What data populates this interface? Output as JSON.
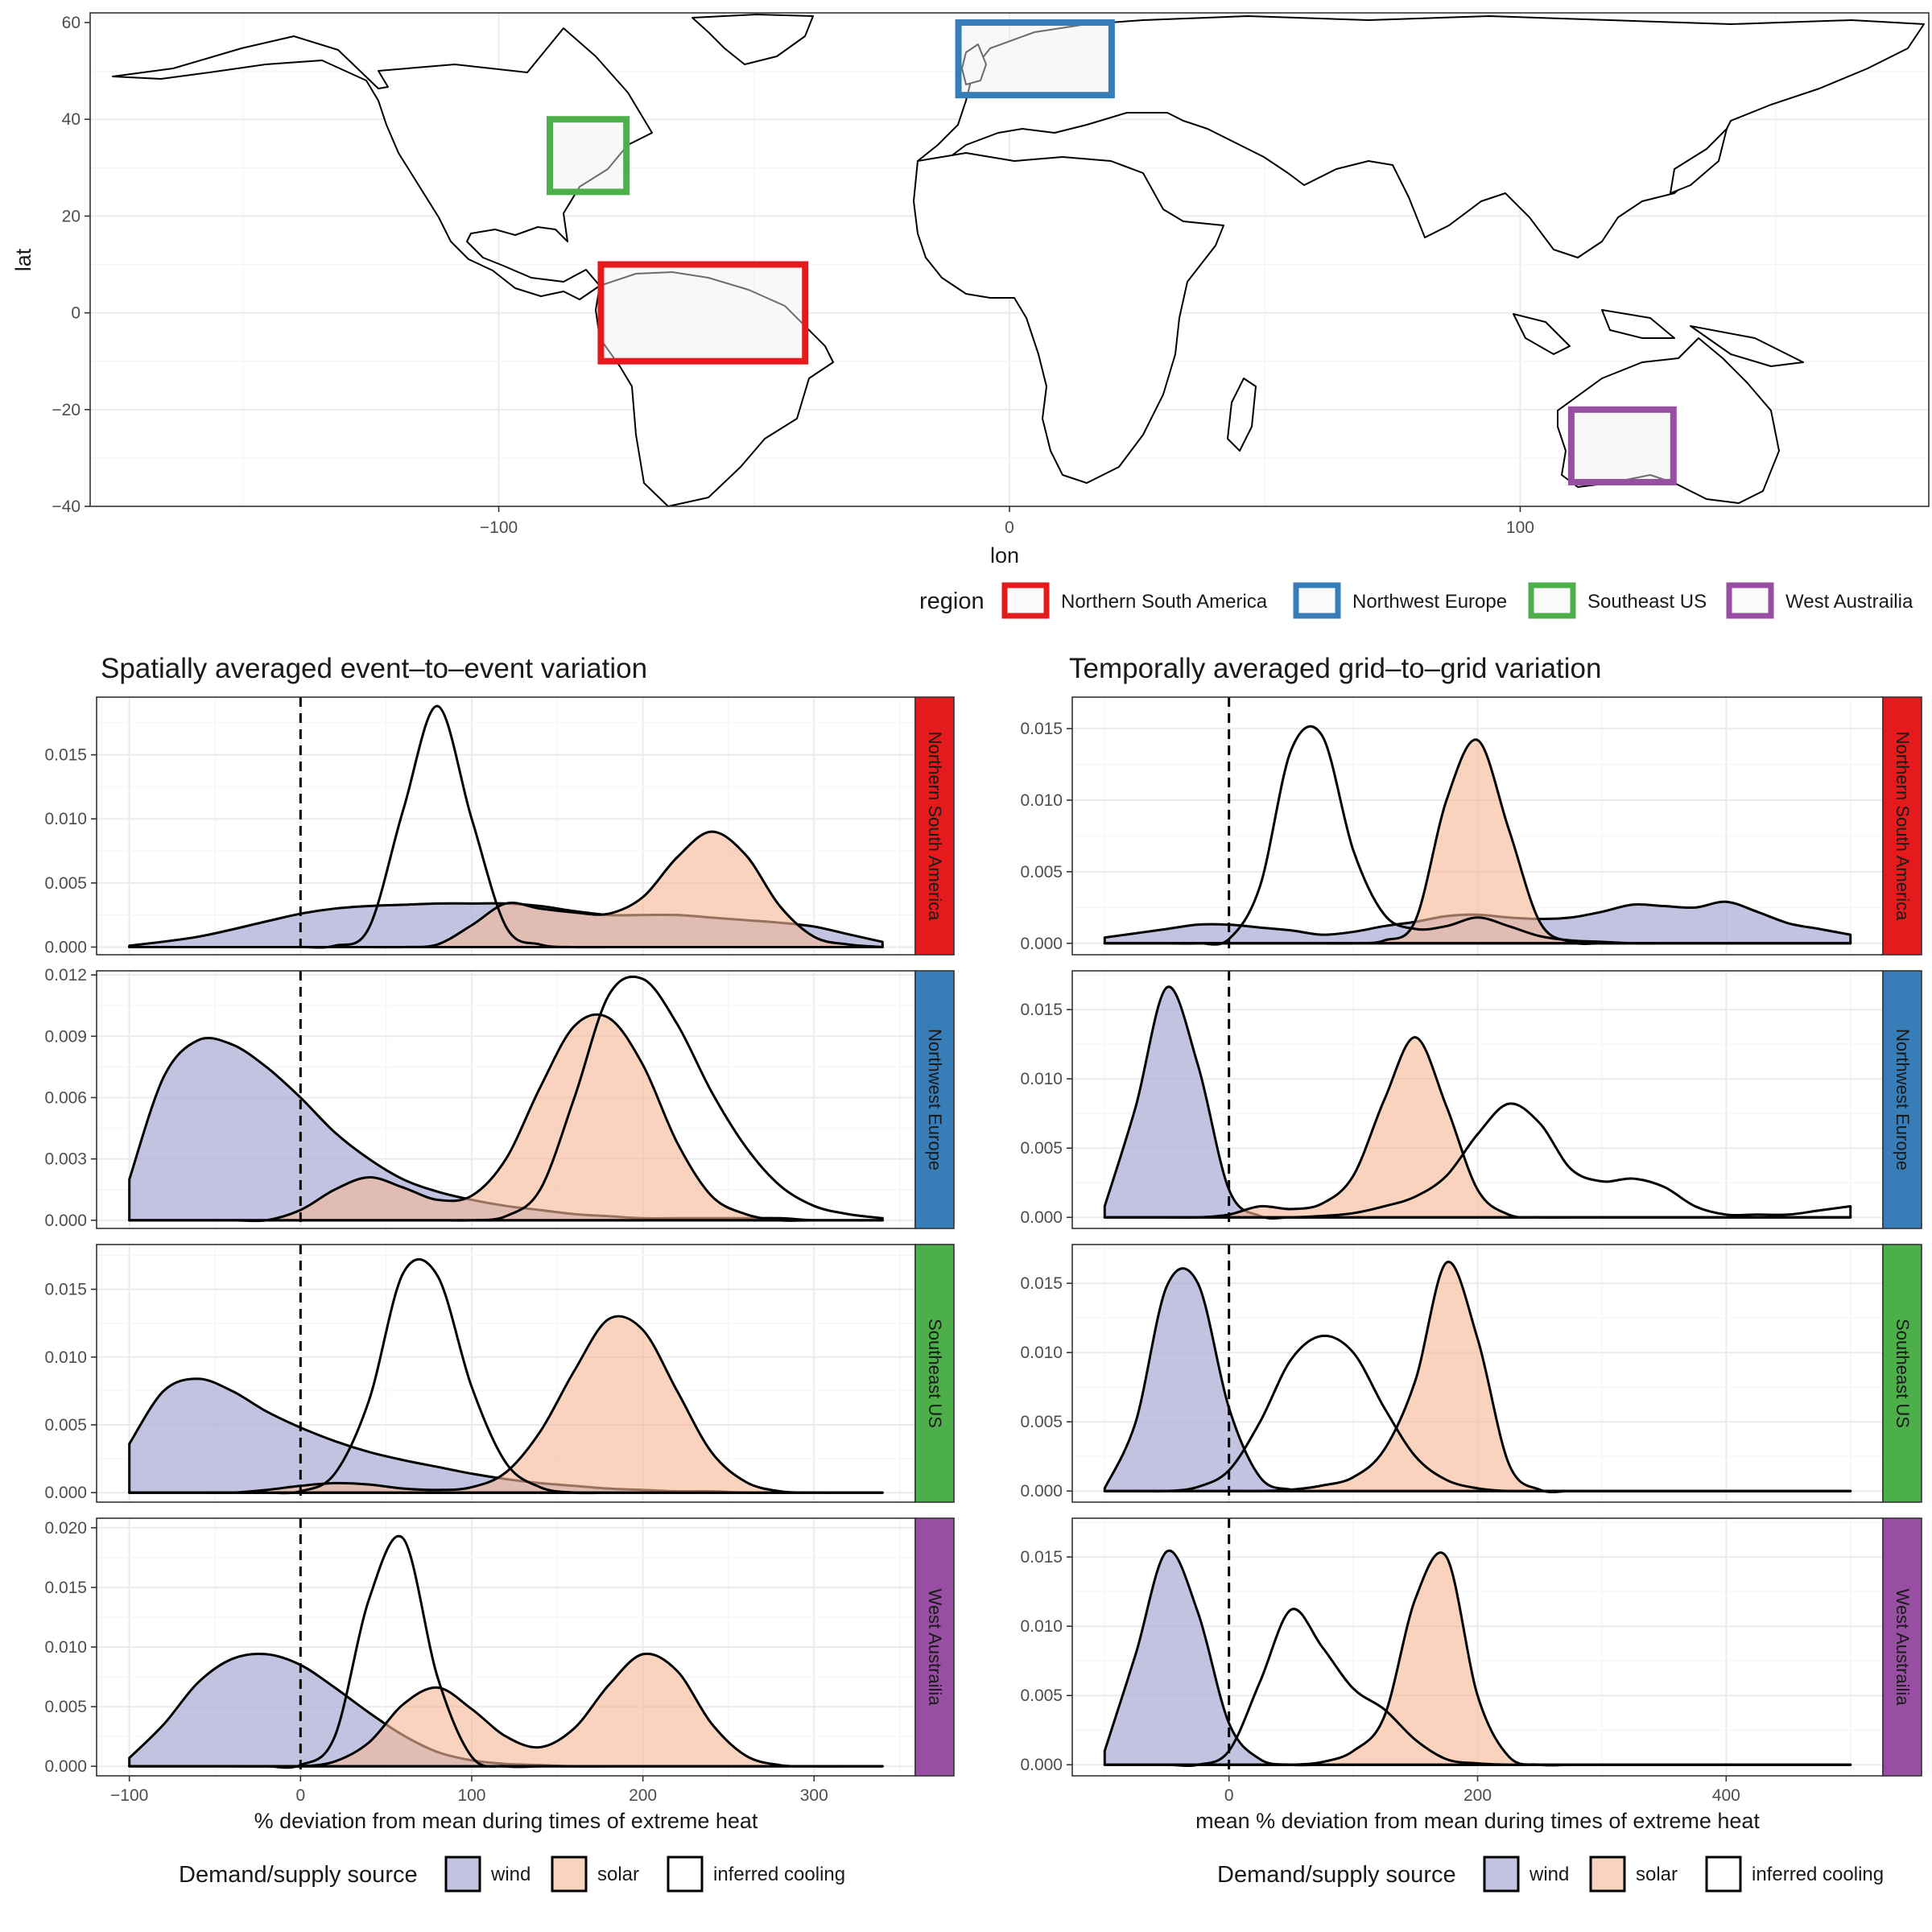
{
  "colors": {
    "wind_fill": "#a9acd6",
    "solar_fill": "#f6b896",
    "cooling_fill": "#ffffff",
    "Northern South America": "#e41a1c",
    "Northwest Europe": "#377eb8",
    "Southeast US": "#4daf4a",
    "West Austrailia": "#984ea3"
  },
  "map": {
    "xlabel": "lon",
    "ylabel": "lat",
    "xlim": [
      -180,
      180
    ],
    "ylim": [
      -40,
      62
    ],
    "xticks": [
      -100,
      0,
      100
    ],
    "yticks": [
      -40,
      -20,
      0,
      20,
      40,
      60
    ],
    "tick_labels_x": [
      "−100",
      "0",
      "100"
    ],
    "tick_labels_y": [
      "−40",
      "−20",
      "0",
      "20",
      "40",
      "60"
    ],
    "legend_title": "region",
    "regions": [
      {
        "name": "Northern South America",
        "lon": [
          -80,
          -40
        ],
        "lat": [
          -10,
          10
        ]
      },
      {
        "name": "Northwest Europe",
        "lon": [
          -10,
          20
        ],
        "lat": [
          45,
          60
        ]
      },
      {
        "name": "Southeast US",
        "lon": [
          -90,
          -75
        ],
        "lat": [
          25,
          40
        ]
      },
      {
        "name": "West Austrailia",
        "lon": [
          110,
          130
        ],
        "lat": [
          -35,
          -20
        ]
      }
    ]
  },
  "chart_data": [
    {
      "type": "area",
      "title": "Spatially averaged event–to–event variation",
      "xlabel": "% deviation from mean during times of extreme heat",
      "xlim": [
        -100,
        340
      ],
      "xticks": [
        -100,
        0,
        100,
        200,
        300
      ],
      "xtick_labels": [
        "−100",
        "0",
        "100",
        "200",
        "300"
      ],
      "vline_x": 0,
      "legend_title": "Demand/supply source",
      "legend": [
        "wind",
        "solar",
        "inferred cooling"
      ],
      "facets": [
        {
          "region": "Northern South America",
          "yticks": [
            0.0,
            0.005,
            0.01,
            0.015
          ],
          "ytick_labels": [
            "0.000",
            "0.005",
            "0.010",
            "0.015"
          ],
          "ylim": [
            -0.0006,
            0.0195
          ],
          "x": [
            -100,
            -60,
            -20,
            0,
            20,
            40,
            60,
            80,
            100,
            120,
            140,
            160,
            180,
            200,
            220,
            240,
            260,
            280,
            300,
            320,
            340
          ],
          "wind": [
            0.0001,
            0.0008,
            0.002,
            0.0026,
            0.003,
            0.0032,
            0.0033,
            0.0034,
            0.0034,
            0.0034,
            0.0032,
            0.0028,
            0.0025,
            0.0025,
            0.0025,
            0.0023,
            0.0021,
            0.0019,
            0.0016,
            0.001,
            0.0004
          ],
          "solar": [
            0,
            0,
            0,
            0,
            0,
            0,
            0,
            0.0002,
            0.0017,
            0.0034,
            0.003,
            0.0027,
            0.0026,
            0.0039,
            0.007,
            0.009,
            0.0072,
            0.0032,
            0.0008,
            0.0002,
            0
          ],
          "cooling": [
            0,
            0,
            0,
            0,
            0.0001,
            0.0015,
            0.0107,
            0.0188,
            0.01,
            0.0016,
            0.0002,
            0,
            0,
            0,
            0,
            0,
            0,
            0,
            0,
            0,
            0
          ]
        },
        {
          "region": "Northwest Europe",
          "yticks": [
            0.0,
            0.003,
            0.006,
            0.009,
            0.012
          ],
          "ytick_labels": [
            "0.000",
            "0.003",
            "0.006",
            "0.009",
            "0.012"
          ],
          "ylim": [
            -0.0004,
            0.0122
          ],
          "x": [
            -100,
            -80,
            -60,
            -40,
            -20,
            0,
            20,
            40,
            60,
            80,
            100,
            120,
            140,
            160,
            180,
            200,
            220,
            240,
            260,
            280,
            300,
            320,
            340
          ],
          "wind": [
            0.002,
            0.007,
            0.0088,
            0.0086,
            0.0075,
            0.006,
            0.0043,
            0.003,
            0.002,
            0.0014,
            0.001,
            0.0007,
            0.0005,
            0.0003,
            0.0002,
            0.0001,
            0.0001,
            0.0001,
            0.0001,
            0.0001,
            0,
            0,
            0
          ],
          "solar": [
            0,
            0,
            0,
            0,
            0,
            0.0005,
            0.0015,
            0.0021,
            0.0016,
            0.001,
            0.0012,
            0.003,
            0.0065,
            0.0095,
            0.0099,
            0.0076,
            0.0038,
            0.0012,
            0.0003,
            0,
            0,
            0,
            0
          ],
          "cooling": [
            0,
            0,
            0,
            0,
            0,
            0,
            0,
            0,
            0,
            0,
            0,
            0.0002,
            0.0015,
            0.006,
            0.011,
            0.0118,
            0.0096,
            0.0063,
            0.0036,
            0.0017,
            0.0007,
            0.0003,
            0.0001
          ]
        },
        {
          "region": "Southeast US",
          "yticks": [
            0.0,
            0.005,
            0.01,
            0.015
          ],
          "ytick_labels": [
            "0.000",
            "0.005",
            "0.010",
            "0.015"
          ],
          "ylim": [
            -0.0007,
            0.0183
          ],
          "x": [
            -100,
            -80,
            -60,
            -40,
            -20,
            0,
            20,
            40,
            60,
            80,
            100,
            120,
            140,
            160,
            180,
            200,
            220,
            240,
            260,
            280,
            300,
            320,
            340
          ],
          "wind": [
            0.0036,
            0.0075,
            0.0084,
            0.0075,
            0.006,
            0.0048,
            0.0038,
            0.003,
            0.0024,
            0.0019,
            0.0014,
            0.001,
            0.0007,
            0.0005,
            0.0003,
            0.0002,
            0.0001,
            0.0001,
            0,
            0,
            0,
            0,
            0
          ],
          "solar": [
            0,
            0,
            0,
            0,
            0.0002,
            0.0005,
            0.0007,
            0.0006,
            0.0003,
            0.0002,
            0.0004,
            0.0015,
            0.0045,
            0.009,
            0.0128,
            0.012,
            0.0075,
            0.003,
            0.0008,
            0.0001,
            0,
            0,
            0
          ],
          "cooling": [
            0,
            0,
            0,
            0,
            0,
            0.0001,
            0.0014,
            0.0068,
            0.0162,
            0.016,
            0.0078,
            0.0022,
            0.0004,
            0,
            0,
            0,
            0,
            0,
            0,
            0,
            0,
            0,
            0
          ]
        },
        {
          "region": "West Austrailia",
          "yticks": [
            0.0,
            0.005,
            0.01,
            0.015,
            0.02
          ],
          "ytick_labels": [
            "0.000",
            "0.005",
            "0.010",
            "0.015",
            "0.020"
          ],
          "ylim": [
            -0.0008,
            0.0208
          ],
          "x": [
            -100,
            -80,
            -60,
            -40,
            -20,
            0,
            20,
            40,
            60,
            80,
            100,
            120,
            140,
            160,
            180,
            200,
            220,
            240,
            260,
            280,
            300,
            320,
            340
          ],
          "wind": [
            0.0007,
            0.0035,
            0.007,
            0.009,
            0.0094,
            0.0085,
            0.0066,
            0.0045,
            0.0026,
            0.0012,
            0.0005,
            0.0002,
            0.0001,
            0,
            0,
            0,
            0,
            0,
            0,
            0,
            0,
            0,
            0
          ],
          "solar": [
            0,
            0,
            0,
            0,
            0,
            0,
            0.0004,
            0.002,
            0.0052,
            0.0066,
            0.0048,
            0.0025,
            0.0016,
            0.0032,
            0.0068,
            0.0094,
            0.008,
            0.0036,
            0.0009,
            0.0001,
            0,
            0,
            0
          ],
          "cooling": [
            0,
            0,
            0,
            0,
            0,
            0.0001,
            0.0025,
            0.014,
            0.0191,
            0.0075,
            0.0008,
            0,
            0,
            0,
            0,
            0,
            0,
            0,
            0,
            0,
            0,
            0,
            0
          ]
        }
      ]
    },
    {
      "type": "area",
      "title": "Temporally averaged grid–to–grid variation",
      "xlabel": "mean % deviation from mean during times of extreme heat",
      "xlim": [
        -100,
        500
      ],
      "xticks": [
        0,
        200,
        400
      ],
      "xtick_labels": [
        "0",
        "200",
        "400"
      ],
      "vline_x": 0,
      "legend_title": "Demand/supply source",
      "legend": [
        "wind",
        "solar",
        "inferred cooling"
      ],
      "facets": [
        {
          "region": "Northern South America",
          "yticks": [
            0.0,
            0.005,
            0.01,
            0.015
          ],
          "ytick_labels": [
            "0.000",
            "0.005",
            "0.010",
            "0.015"
          ],
          "ylim": [
            -0.0008,
            0.0172
          ],
          "x": [
            -100,
            -75,
            -50,
            -25,
            0,
            25,
            50,
            75,
            100,
            125,
            150,
            175,
            200,
            225,
            250,
            275,
            300,
            325,
            350,
            375,
            400,
            425,
            450,
            475,
            500
          ],
          "wind": [
            0.0004,
            0.0007,
            0.001,
            0.0013,
            0.0013,
            0.0011,
            0.0009,
            0.0006,
            0.0008,
            0.0012,
            0.0015,
            0.0019,
            0.002,
            0.0018,
            0.0017,
            0.0018,
            0.0022,
            0.0027,
            0.0026,
            0.0025,
            0.0029,
            0.0022,
            0.0014,
            0.001,
            0.0006
          ],
          "solar": [
            0,
            0,
            0,
            0,
            0,
            0,
            0,
            0,
            0,
            0.0002,
            0.0016,
            0.01,
            0.0142,
            0.008,
            0.0015,
            0.0001,
            0,
            0,
            0,
            0,
            0,
            0,
            0,
            0,
            0
          ],
          "cooling": [
            0,
            0,
            0,
            0,
            0.0003,
            0.004,
            0.0135,
            0.0145,
            0.0065,
            0.002,
            0.001,
            0.0012,
            0.0018,
            0.0012,
            0.0005,
            0.0002,
            0.0001,
            0,
            0,
            0,
            0,
            0,
            0,
            0,
            0
          ]
        },
        {
          "region": "Northwest Europe",
          "yticks": [
            0.0,
            0.005,
            0.01,
            0.015
          ],
          "ytick_labels": [
            "0.000",
            "0.005",
            "0.010",
            "0.015"
          ],
          "ylim": [
            -0.0008,
            0.0178
          ],
          "x": [
            -100,
            -75,
            -50,
            -25,
            0,
            25,
            50,
            75,
            100,
            125,
            150,
            175,
            200,
            225,
            250,
            275,
            300,
            325,
            350,
            375,
            400,
            425,
            450,
            475,
            500
          ],
          "wind": [
            0.0008,
            0.008,
            0.0166,
            0.011,
            0.002,
            0.0001,
            0,
            0,
            0,
            0,
            0,
            0,
            0,
            0,
            0,
            0,
            0,
            0,
            0,
            0,
            0,
            0,
            0,
            0,
            0
          ],
          "solar": [
            0,
            0,
            0,
            0,
            0.0002,
            0.0008,
            0.0006,
            0.001,
            0.003,
            0.0085,
            0.013,
            0.008,
            0.002,
            0.0002,
            0,
            0,
            0,
            0,
            0,
            0,
            0,
            0,
            0,
            0,
            0
          ],
          "cooling": [
            0,
            0,
            0,
            0,
            0,
            0,
            0,
            0.0001,
            0.0003,
            0.0008,
            0.0015,
            0.003,
            0.006,
            0.0082,
            0.0068,
            0.0035,
            0.0026,
            0.0028,
            0.0022,
            0.0008,
            0.0002,
            0.0002,
            0.0002,
            0.0005,
            0.0008
          ]
        },
        {
          "region": "Southeast US",
          "yticks": [
            0.0,
            0.005,
            0.01,
            0.015
          ],
          "ytick_labels": [
            "0.000",
            "0.005",
            "0.010",
            "0.015"
          ],
          "ylim": [
            -0.0008,
            0.0178
          ],
          "x": [
            -100,
            -75,
            -50,
            -25,
            0,
            25,
            50,
            75,
            100,
            125,
            150,
            175,
            200,
            225,
            250,
            275,
            300,
            325,
            350,
            375,
            400,
            425,
            450,
            475,
            500
          ],
          "wind": [
            0.0002,
            0.005,
            0.0148,
            0.015,
            0.006,
            0.001,
            0.0001,
            0,
            0,
            0,
            0,
            0,
            0,
            0,
            0,
            0,
            0,
            0,
            0,
            0,
            0,
            0,
            0,
            0,
            0
          ],
          "solar": [
            0,
            0,
            0,
            0,
            0,
            0,
            0.0001,
            0.0004,
            0.001,
            0.003,
            0.008,
            0.0165,
            0.011,
            0.002,
            0.0001,
            0,
            0,
            0,
            0,
            0,
            0,
            0,
            0,
            0,
            0
          ],
          "cooling": [
            0,
            0,
            0,
            0.0003,
            0.0015,
            0.005,
            0.0095,
            0.0112,
            0.01,
            0.006,
            0.0025,
            0.0008,
            0.0002,
            0,
            0,
            0,
            0,
            0,
            0,
            0,
            0,
            0,
            0,
            0,
            0
          ]
        },
        {
          "region": "West Austrailia",
          "yticks": [
            0.0,
            0.005,
            0.01,
            0.015
          ],
          "ytick_labels": [
            "0.000",
            "0.005",
            "0.010",
            "0.015"
          ],
          "ylim": [
            -0.0008,
            0.0178
          ],
          "x": [
            -100,
            -75,
            -50,
            -25,
            0,
            25,
            50,
            75,
            100,
            125,
            150,
            175,
            200,
            225,
            250,
            275,
            300,
            325,
            350,
            375,
            400,
            425,
            450,
            475,
            500
          ],
          "wind": [
            0.001,
            0.008,
            0.0154,
            0.011,
            0.003,
            0.0004,
            0,
            0,
            0,
            0,
            0,
            0,
            0,
            0,
            0,
            0,
            0,
            0,
            0,
            0,
            0,
            0,
            0,
            0,
            0
          ],
          "solar": [
            0,
            0,
            0,
            0,
            0,
            0,
            0,
            0.0002,
            0.001,
            0.0035,
            0.012,
            0.015,
            0.005,
            0.0006,
            0,
            0,
            0,
            0,
            0,
            0,
            0,
            0,
            0,
            0,
            0
          ],
          "cooling": [
            0,
            0,
            0,
            0,
            0.001,
            0.006,
            0.0112,
            0.0085,
            0.0055,
            0.004,
            0.0018,
            0.0004,
            0.0001,
            0,
            0,
            0,
            0,
            0,
            0,
            0,
            0,
            0,
            0,
            0,
            0
          ]
        }
      ]
    }
  ]
}
